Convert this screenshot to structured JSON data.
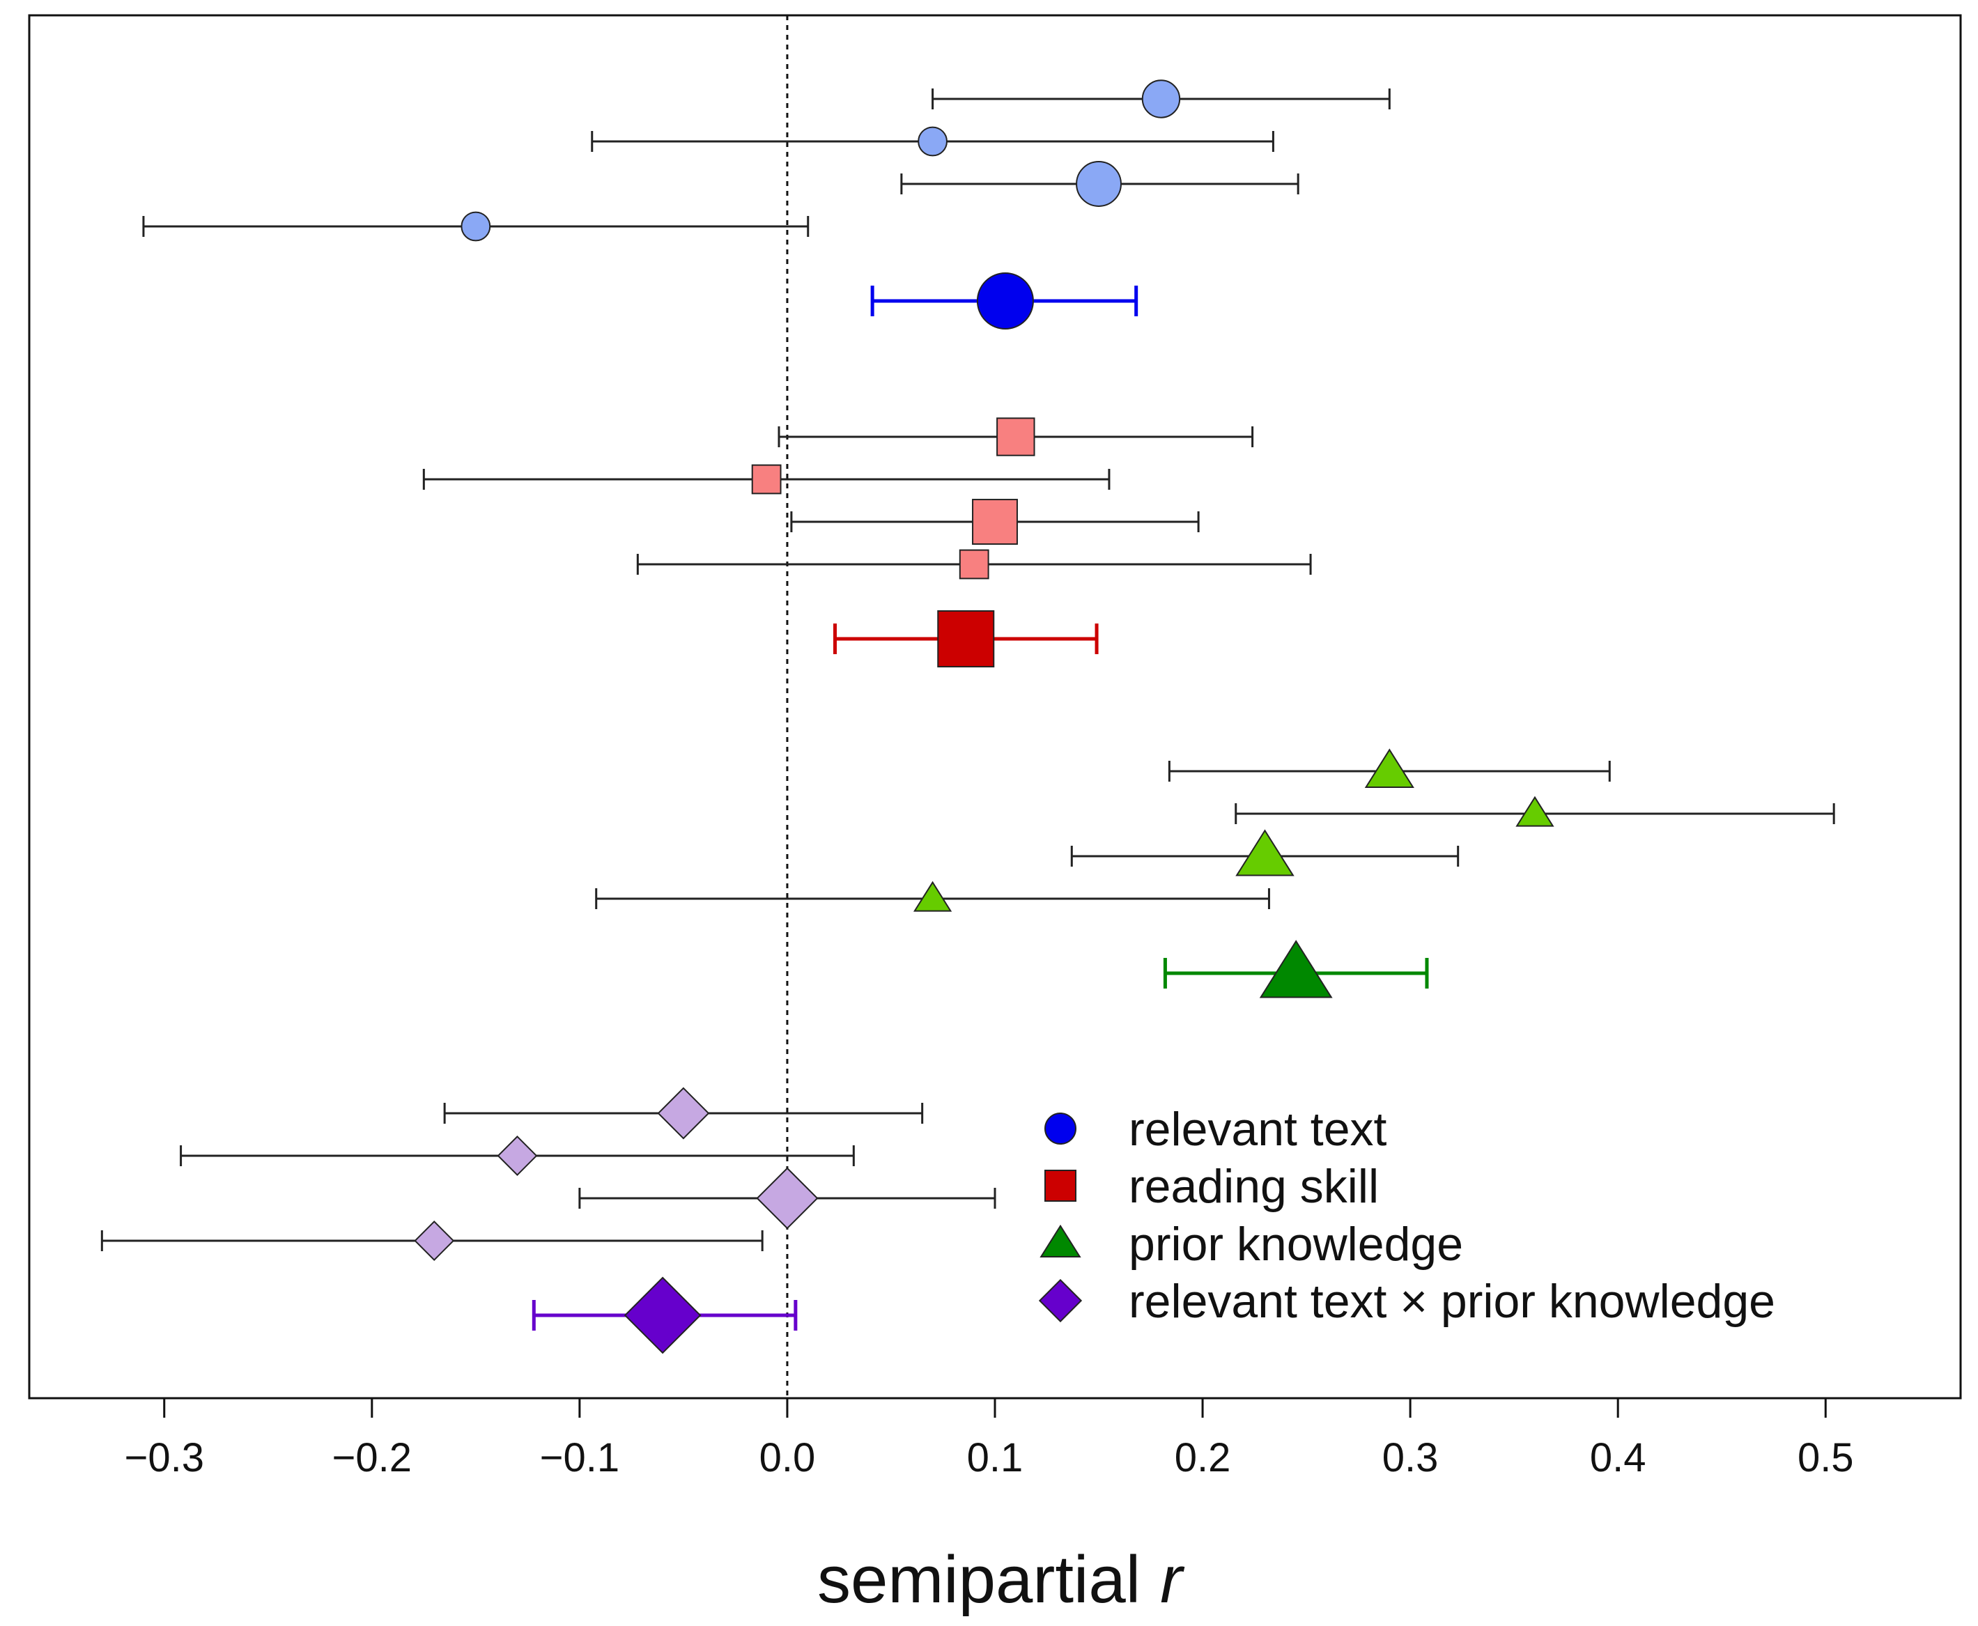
{
  "chart_data": {
    "type": "forest",
    "title": "",
    "xlabel": "semipartial",
    "xlabel_italic": "r",
    "xlim": [
      -0.365,
      0.565
    ],
    "xticks": [
      -0.3,
      -0.2,
      -0.1,
      0.0,
      0.1,
      0.2,
      0.3,
      0.4,
      0.5
    ],
    "xtick_labels": [
      "−0.3",
      "−0.2",
      "−0.1",
      "0.0",
      "0.1",
      "0.2",
      "0.3",
      "0.4",
      "0.5"
    ],
    "reference_line": 0.0,
    "legend_placement": "bottom-right",
    "groups": [
      {
        "name": "relevant text",
        "marker": "circle",
        "light_color": "#8aa8f5",
        "dark_color": "#0000ee",
        "studies": [
          {
            "estimate": 0.18,
            "lower": 0.07,
            "upper": 0.29,
            "weight": 0.7
          },
          {
            "estimate": 0.07,
            "lower": -0.094,
            "upper": 0.234,
            "weight": 0.4
          },
          {
            "estimate": 0.15,
            "lower": 0.055,
            "upper": 0.246,
            "weight": 0.95
          },
          {
            "estimate": -0.15,
            "lower": -0.31,
            "upper": 0.01,
            "weight": 0.4
          }
        ],
        "summary": {
          "estimate": 0.105,
          "lower": 0.041,
          "upper": 0.168
        }
      },
      {
        "name": "reading skill",
        "marker": "square",
        "light_color": "#f88080",
        "dark_color": "#cc0000",
        "studies": [
          {
            "estimate": 0.11,
            "lower": -0.004,
            "upper": 0.224,
            "weight": 0.7
          },
          {
            "estimate": -0.01,
            "lower": -0.175,
            "upper": 0.155,
            "weight": 0.4
          },
          {
            "estimate": 0.1,
            "lower": 0.002,
            "upper": 0.198,
            "weight": 0.95
          },
          {
            "estimate": 0.09,
            "lower": -0.072,
            "upper": 0.252,
            "weight": 0.4
          }
        ],
        "summary": {
          "estimate": 0.086,
          "lower": 0.023,
          "upper": 0.149
        }
      },
      {
        "name": "prior knowledge",
        "marker": "triangle",
        "light_color": "#66cc00",
        "dark_color": "#008800",
        "studies": [
          {
            "estimate": 0.29,
            "lower": 0.184,
            "upper": 0.396,
            "weight": 0.7
          },
          {
            "estimate": 0.36,
            "lower": 0.216,
            "upper": 0.504,
            "weight": 0.4
          },
          {
            "estimate": 0.23,
            "lower": 0.137,
            "upper": 0.323,
            "weight": 0.95
          },
          {
            "estimate": 0.07,
            "lower": -0.092,
            "upper": 0.232,
            "weight": 0.4
          }
        ],
        "summary": {
          "estimate": 0.245,
          "lower": 0.182,
          "upper": 0.308
        }
      },
      {
        "name": "relevant text × prior knowledge",
        "marker": "diamond",
        "light_color": "#c6a8e2",
        "dark_color": "#6600cc",
        "studies": [
          {
            "estimate": -0.05,
            "lower": -0.165,
            "upper": 0.065,
            "weight": 0.7
          },
          {
            "estimate": -0.13,
            "lower": -0.292,
            "upper": 0.032,
            "weight": 0.4
          },
          {
            "estimate": 0.0,
            "lower": -0.1,
            "upper": 0.1,
            "weight": 0.95
          },
          {
            "estimate": -0.17,
            "lower": -0.33,
            "upper": -0.012,
            "weight": 0.4
          }
        ],
        "summary": {
          "estimate": -0.06,
          "lower": -0.122,
          "upper": 0.004
        }
      }
    ],
    "legend": [
      "relevant text",
      "reading skill",
      "prior knowledge",
      "relevant text × prior knowledge"
    ]
  }
}
